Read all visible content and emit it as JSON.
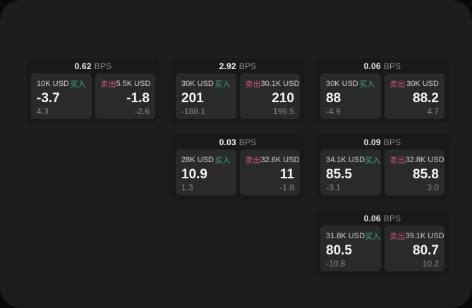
{
  "icons": {
    "menu": "≡"
  },
  "labels": {
    "bps": "BPS",
    "buy": "买入",
    "sell": "卖出"
  },
  "colors": {
    "buy": "#3cb370",
    "sell": "#d05666"
  },
  "cards": [
    {
      "bps": "0.62",
      "buy": {
        "amount": "10K USD",
        "value": "-3.7",
        "sub": "4.3"
      },
      "sell": {
        "amount": "5.5K USD",
        "value": "-1.8",
        "sub": "-2.6"
      }
    },
    {
      "bps": "2.92",
      "buy": {
        "amount": "30K USD",
        "value": "201",
        "sub": "-188.1"
      },
      "sell": {
        "amount": "30.1K USD",
        "value": "210",
        "sub": "196.5"
      }
    },
    {
      "bps": "0.06",
      "buy": {
        "amount": "30K USD",
        "value": "88",
        "sub": "-4.9"
      },
      "sell": {
        "amount": "30K USD",
        "value": "88.2",
        "sub": "4.7"
      }
    },
    {
      "bps": "0.03",
      "buy": {
        "amount": "28K USD",
        "value": "10.9",
        "sub": "1.3"
      },
      "sell": {
        "amount": "32.6K USD",
        "value": "11",
        "sub": "-1.8"
      }
    },
    {
      "bps": "0.09",
      "buy": {
        "amount": "34.1K USD",
        "value": "85.5",
        "sub": "-3.1"
      },
      "sell": {
        "amount": "32.8K USD",
        "value": "85.8",
        "sub": "3.0"
      }
    },
    {
      "bps": "0.06",
      "buy": {
        "amount": "31.8K USD",
        "value": "80.5",
        "sub": "-10.8"
      },
      "sell": {
        "amount": "39.1K USD",
        "value": "80.7",
        "sub": "10.2"
      }
    }
  ]
}
